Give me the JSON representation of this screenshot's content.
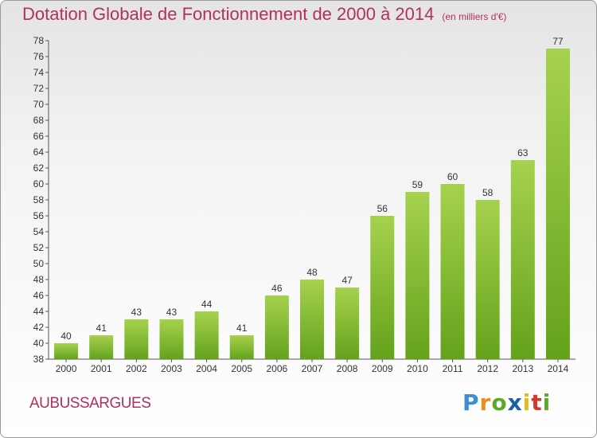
{
  "header": {
    "title": "Dotation Globale de Fonctionnement de 2000 à 2014",
    "unit": "(en milliers d'€)"
  },
  "footer": {
    "city": "AUBUSSARGUES",
    "logo": "Proxiti"
  },
  "colors": {
    "title": "#b03060",
    "bar_light": "#a6d24e",
    "bar_dark": "#64a21c"
  },
  "chart_data": {
    "type": "bar",
    "title": "Dotation Globale de Fonctionnement de 2000 à 2014",
    "subtitle": "(en milliers d'€)",
    "xlabel": "",
    "ylabel": "",
    "categories": [
      "2000",
      "2001",
      "2002",
      "2003",
      "2004",
      "2005",
      "2006",
      "2007",
      "2008",
      "2009",
      "2010",
      "2011",
      "2012",
      "2013",
      "2014"
    ],
    "values": [
      40,
      41,
      43,
      43,
      44,
      41,
      46,
      48,
      47,
      56,
      59,
      60,
      58,
      63,
      77
    ],
    "ylim": [
      38,
      78
    ],
    "yticks": [
      38,
      40,
      42,
      44,
      46,
      48,
      50,
      52,
      54,
      56,
      58,
      60,
      62,
      64,
      66,
      68,
      70,
      72,
      74,
      76,
      78
    ],
    "grid": false,
    "data_labels": true
  }
}
